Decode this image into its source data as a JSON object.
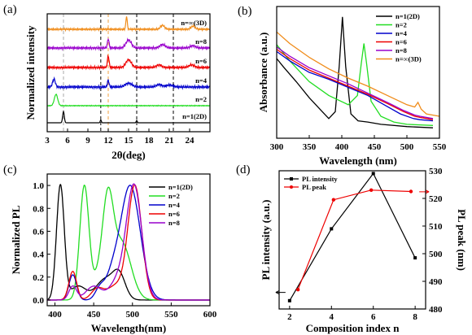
{
  "colors": {
    "black": "#000000",
    "green": "#22dd22",
    "blue": "#0000cc",
    "red": "#ee0000",
    "purple": "#9900cc",
    "orange": "#f08c1a",
    "olive": "#c8c800",
    "ref_black": "#000000",
    "ref_grey": "#aaaaaa",
    "ref_orange": "#f0a040"
  },
  "chart_data": [
    {
      "panel": "(a)",
      "type": "line",
      "xlabel": "2θ(deg)",
      "ylabel": "Normalized intensity",
      "xlim": [
        3,
        27
      ],
      "xticks": [
        3,
        6,
        9,
        12,
        15,
        18,
        21,
        24
      ],
      "reference_lines": [
        {
          "x": 5.4,
          "style": "dashed",
          "color": "ref_grey"
        },
        {
          "x": 10.9,
          "style": "dashed",
          "color": "ref_black"
        },
        {
          "x": 12.0,
          "style": "dashed",
          "color": "ref_orange"
        },
        {
          "x": 16.2,
          "style": "dashed",
          "color": "ref_black"
        },
        {
          "x": 21.6,
          "style": "dashed",
          "color": "ref_black"
        }
      ],
      "series": [
        {
          "name": "n=1(2D)",
          "color": "black",
          "peaks": [
            [
              5.4,
              1.0,
              0.12
            ],
            [
              10.9,
              0.25,
              0.08
            ],
            [
              16.2,
              0.2,
              0.08
            ]
          ]
        },
        {
          "name": "n=2",
          "color": "green",
          "peaks": [
            [
              4.3,
              1.0,
              0.25
            ]
          ]
        },
        {
          "name": "n=4",
          "color": "blue",
          "peaks": [
            [
              4.0,
              0.8,
              0.2
            ],
            [
              12.0,
              0.7,
              0.12
            ],
            [
              15.0,
              0.4,
              0.5
            ],
            [
              19.5,
              0.25,
              0.4
            ],
            [
              21.0,
              0.2,
              0.5
            ]
          ]
        },
        {
          "name": "n=6",
          "color": "red",
          "peaks": [
            [
              12.0,
              0.9,
              0.12
            ],
            [
              15.0,
              0.6,
              0.4
            ],
            [
              19.5,
              0.2,
              0.4
            ],
            [
              24.3,
              0.2,
              0.4
            ]
          ]
        },
        {
          "name": "n=8",
          "color": "purple",
          "peaks": [
            [
              12.0,
              0.8,
              0.12
            ],
            [
              15.0,
              0.7,
              0.4
            ],
            [
              20.0,
              0.3,
              0.4
            ],
            [
              24.5,
              0.2,
              0.4
            ]
          ]
        },
        {
          "name": "n=∞(3D)",
          "color": "orange",
          "peaks": [
            [
              14.7,
              1.0,
              0.1
            ],
            [
              20.0,
              0.3,
              0.3
            ],
            [
              24.5,
              0.25,
              0.3
            ]
          ]
        }
      ]
    },
    {
      "panel": "(b)",
      "type": "line",
      "xlabel": "Wavelength (nm)",
      "ylabel": "Absorbance (a.u.)",
      "xlim": [
        300,
        550
      ],
      "xticks": [
        300,
        350,
        400,
        450,
        500,
        550
      ],
      "legend": [
        "n=1(2D)",
        "n=2",
        "n=4",
        "n=6",
        "n=8",
        "n=∞(3D)"
      ],
      "legend_position": "top-right",
      "series": [
        {
          "name": "n=1(2D)",
          "color": "black",
          "points": [
            [
              300,
              0.62
            ],
            [
              310,
              0.55
            ],
            [
              330,
              0.42
            ],
            [
              350,
              0.28
            ],
            [
              370,
              0.16
            ],
            [
              380,
              0.1
            ],
            [
              390,
              0.16
            ],
            [
              396,
              0.55
            ],
            [
              401,
              0.98
            ],
            [
              406,
              0.55
            ],
            [
              414,
              0.14
            ],
            [
              425,
              0.08
            ],
            [
              440,
              0.07
            ],
            [
              460,
              0.05
            ],
            [
              500,
              0.03
            ],
            [
              540,
              0.02
            ]
          ]
        },
        {
          "name": "n=2",
          "color": "green",
          "points": [
            [
              300,
              0.74
            ],
            [
              320,
              0.6
            ],
            [
              350,
              0.42
            ],
            [
              380,
              0.3
            ],
            [
              410,
              0.22
            ],
            [
              424,
              0.3
            ],
            [
              430,
              0.58
            ],
            [
              434,
              0.75
            ],
            [
              438,
              0.58
            ],
            [
              445,
              0.25
            ],
            [
              460,
              0.12
            ],
            [
              480,
              0.07
            ],
            [
              500,
              0.05
            ],
            [
              540,
              0.04
            ]
          ]
        },
        {
          "name": "n=4",
          "color": "blue",
          "points": [
            [
              300,
              0.68
            ],
            [
              320,
              0.6
            ],
            [
              350,
              0.5
            ],
            [
              380,
              0.44
            ],
            [
              410,
              0.37
            ],
            [
              440,
              0.3
            ],
            [
              465,
              0.22
            ],
            [
              490,
              0.14
            ],
            [
              510,
              0.1
            ],
            [
              520,
              0.09
            ],
            [
              540,
              0.08
            ]
          ]
        },
        {
          "name": "n=6",
          "color": "red",
          "points": [
            [
              300,
              0.7
            ],
            [
              320,
              0.62
            ],
            [
              350,
              0.52
            ],
            [
              380,
              0.45
            ],
            [
              410,
              0.38
            ],
            [
              440,
              0.31
            ],
            [
              470,
              0.23
            ],
            [
              495,
              0.16
            ],
            [
              512,
              0.12
            ],
            [
              520,
              0.11
            ],
            [
              540,
              0.09
            ]
          ]
        },
        {
          "name": "n=8",
          "color": "purple",
          "points": [
            [
              300,
              0.72
            ],
            [
              320,
              0.64
            ],
            [
              350,
              0.54
            ],
            [
              380,
              0.47
            ],
            [
              410,
              0.4
            ],
            [
              440,
              0.32
            ],
            [
              470,
              0.24
            ],
            [
              495,
              0.17
            ],
            [
              512,
              0.13
            ],
            [
              520,
              0.12
            ],
            [
              540,
              0.1
            ]
          ]
        },
        {
          "name": "n=∞(3D)",
          "color": "orange",
          "points": [
            [
              300,
              0.85
            ],
            [
              320,
              0.75
            ],
            [
              350,
              0.63
            ],
            [
              380,
              0.53
            ],
            [
              410,
              0.45
            ],
            [
              440,
              0.38
            ],
            [
              470,
              0.3
            ],
            [
              500,
              0.22
            ],
            [
              512,
              0.2
            ],
            [
              517,
              0.24
            ],
            [
              522,
              0.18
            ],
            [
              530,
              0.14
            ],
            [
              550,
              0.12
            ]
          ]
        }
      ]
    },
    {
      "panel": "(c)",
      "type": "line",
      "xlabel": "Wavelength(nm)",
      "ylabel": "Normalized PL",
      "xlim": [
        390,
        600
      ],
      "ylim": [
        -0.05,
        1.1
      ],
      "xticks": [
        400,
        450,
        500,
        550,
        600
      ],
      "yticks": [
        0.0,
        0.2,
        0.4,
        0.6,
        0.8,
        1.0
      ],
      "legend": [
        "n=1(2D)",
        "n=2",
        "n=4",
        "n=6",
        "n=8"
      ],
      "legend_position": "top-right",
      "series": [
        {
          "name": "n=1(2D)",
          "color": "black",
          "peaks": [
            [
              407,
              1.0,
              5
            ],
            [
              430,
              0.12,
              10
            ],
            [
              465,
              0.18,
              12
            ],
            [
              483,
              0.2,
              8
            ]
          ]
        },
        {
          "name": "n=2",
          "color": "green",
          "peaks": [
            [
              438,
              1.0,
              6
            ],
            [
              468,
              0.8,
              7
            ],
            [
              486,
              0.5,
              12
            ],
            [
              455,
              0.15,
              6
            ]
          ]
        },
        {
          "name": "n=4",
          "color": "blue",
          "peaks": [
            [
              497,
              1.0,
              13
            ],
            [
              423,
              0.22,
              5
            ],
            [
              458,
              0.1,
              6
            ],
            [
              473,
              0.15,
              8
            ]
          ]
        },
        {
          "name": "n=6",
          "color": "red",
          "peaks": [
            [
              503,
              1.0,
              9
            ],
            [
              423,
              0.25,
              5
            ],
            [
              455,
              0.1,
              8
            ],
            [
              478,
              0.12,
              10
            ]
          ]
        },
        {
          "name": "n=8",
          "color": "purple",
          "peaks": [
            [
              502,
              1.0,
              10
            ],
            [
              423,
              0.12,
              5
            ],
            [
              450,
              0.12,
              10
            ],
            [
              480,
              0.15,
              10
            ]
          ]
        }
      ]
    },
    {
      "panel": "(d)",
      "type": "line",
      "xlabel": "Composition index n",
      "ylabel": "PL intensity (a.u.)",
      "ylabel_right": "PL peak (nm)",
      "xlim": [
        1.5,
        8.5
      ],
      "xticks": [
        2,
        4,
        6,
        8
      ],
      "y2lim": [
        480,
        530
      ],
      "y2ticks": [
        480,
        490,
        500,
        510,
        520,
        530
      ],
      "legend": [
        "PL intensity",
        "PL peak"
      ],
      "legend_position": "top-left",
      "series": [
        {
          "name": "PL intensity",
          "color": "black",
          "axis": "left",
          "x": [
            2,
            4,
            6,
            8
          ],
          "values": [
            0.06,
            0.58,
            0.98,
            0.37
          ]
        },
        {
          "name": "PL peak",
          "color": "red",
          "axis": "right",
          "x": [
            2.4,
            4.1,
            5.9,
            7.8
          ],
          "values": [
            487,
            519.5,
            523,
            522.5
          ]
        }
      ]
    }
  ]
}
